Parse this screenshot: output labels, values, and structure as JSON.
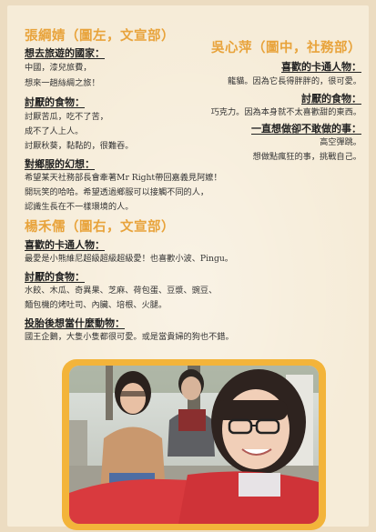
{
  "left_person": {
    "name": "張綱婧（圖左，文宣部）",
    "q1_heading": "想去旅遊的國家：",
    "q1_lines": [
      "中國，漆兒旅費，",
      "想來一趟絲綢之旅！"
    ],
    "q2_heading": "討厭的食物：",
    "q2_lines": [
      "討厭苦瓜，吃不了苦，",
      "成不了人上人。",
      "討厭秋葵，黏黏的，很難吞。"
    ],
    "q3_heading": "對鄉服的幻想：",
    "q3_lines": [
      "希望某天社務部長會牽著Mr Right帶回嘉義見阿嬤！",
      "開玩笑的哈哈。希望透過鄉服可以接觸不同的人，",
      "認識生長在不一樣環境的人。"
    ]
  },
  "middle_person": {
    "name": "吳心萍（圖中，社務部）",
    "q1_heading": "喜歡的卡通人物：",
    "q1_lines": [
      "龍貓。因為它長得胖胖的，很可愛。"
    ],
    "q2_heading": "討厭的食物：",
    "q2_lines": [
      "巧克力。因為本身就不太喜歡甜的東西。"
    ],
    "q3_heading": "一直想做卻不敢做的事：",
    "q3_lines": [
      "高空彈跳。",
      "想做點瘋狂的事，挑戰自己。"
    ]
  },
  "right_person": {
    "name": "楊禾儒（圖右，文宣部）",
    "q1_heading": "喜歡的卡通人物：",
    "q1_lines": [
      "最愛是小熊維尼超級超級超級愛！也喜歡小波、Pingu。"
    ],
    "q2_heading": "討厭的食物：",
    "q2_lines": [
      "水餃、木瓜、奇異果、芝麻、荷包蛋、豆漿、豌豆、",
      "麵包機的烤吐司、內臟、培根、火腿。"
    ],
    "q3_heading": "投胎後想當什麼動物：",
    "q3_lines": [
      "國王企鵝，大隻小隻都很可愛。或是當貴婦的狗也不錯。"
    ]
  },
  "colors": {
    "accent": "#e8a33b",
    "paper": "#f6ecd8",
    "frame": "#f3b43a"
  }
}
